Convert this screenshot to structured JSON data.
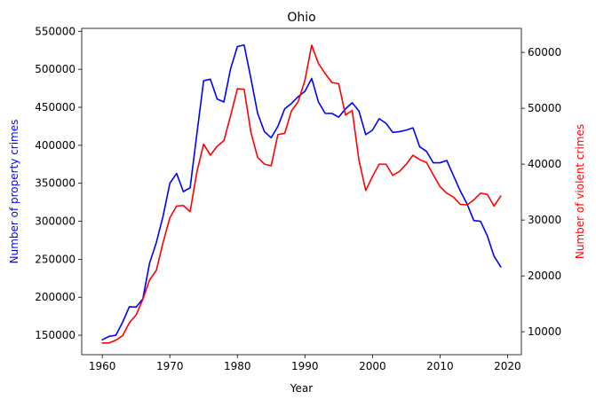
{
  "chart_data": {
    "type": "line",
    "title": "Ohio",
    "xlabel": "Year",
    "ylabel_left": "Number of property crimes",
    "ylabel_right": "Number of violent crimes",
    "xlim": [
      1956.95,
      2022.05
    ],
    "ylim_left": [
      124400,
      553900
    ],
    "ylim_right": [
      5900,
      64300
    ],
    "x_ticks": [
      1960,
      1970,
      1980,
      1990,
      2000,
      2010,
      2020
    ],
    "y_left_ticks": [
      150000,
      200000,
      250000,
      300000,
      350000,
      400000,
      450000,
      500000,
      550000
    ],
    "y_right_ticks": [
      10000,
      20000,
      30000,
      40000,
      50000,
      60000
    ],
    "grid": false,
    "x": [
      1960,
      1961,
      1962,
      1963,
      1964,
      1965,
      1966,
      1967,
      1968,
      1969,
      1970,
      1971,
      1972,
      1973,
      1974,
      1975,
      1976,
      1977,
      1978,
      1979,
      1980,
      1981,
      1982,
      1983,
      1984,
      1985,
      1986,
      1987,
      1988,
      1989,
      1990,
      1991,
      1992,
      1993,
      1994,
      1995,
      1996,
      1997,
      1998,
      1999,
      2000,
      2001,
      2002,
      2003,
      2004,
      2005,
      2006,
      2007,
      2008,
      2009,
      2010,
      2011,
      2012,
      2013,
      2014,
      2015,
      2016,
      2017,
      2018,
      2019
    ],
    "series": [
      {
        "name": "Number of property crimes",
        "axis": "left",
        "color": "#0000ff",
        "values": [
          144000,
          148500,
          150000,
          167000,
          187500,
          187000,
          198000,
          245000,
          272000,
          307000,
          350000,
          363000,
          339000,
          344000,
          415000,
          485000,
          487000,
          461000,
          457000,
          501000,
          530000,
          532000,
          488000,
          442000,
          418000,
          410000,
          425000,
          448000,
          455000,
          464000,
          471000,
          488000,
          457000,
          442000,
          442000,
          437000,
          448000,
          456000,
          445000,
          414000,
          420000,
          435000,
          429000,
          417000,
          418000,
          420000,
          423000,
          398000,
          392000,
          377000,
          377000,
          380000,
          360000,
          340000,
          323000,
          301000,
          300000,
          281000,
          254000,
          240000
        ]
      },
      {
        "name": "Number of violent crimes",
        "axis": "right",
        "color": "#ff0000",
        "values": [
          8000,
          8000,
          8500,
          9300,
          11600,
          13000,
          15800,
          19300,
          21000,
          26000,
          30400,
          32500,
          32600,
          31500,
          38600,
          43600,
          41600,
          43200,
          44200,
          48700,
          53500,
          53400,
          45700,
          41200,
          40000,
          39700,
          45300,
          45500,
          49500,
          51200,
          55000,
          61300,
          58000,
          56200,
          54600,
          54400,
          48800,
          49600,
          40700,
          35300,
          37800,
          40000,
          40000,
          38000,
          38700,
          40000,
          41600,
          40800,
          40300,
          38100,
          36000,
          34800,
          34100,
          32800,
          32700,
          33600,
          34800,
          34600,
          32500,
          34300
        ]
      }
    ]
  }
}
